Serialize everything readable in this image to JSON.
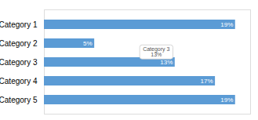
{
  "chart_data": {
    "type": "bar",
    "orientation": "horizontal",
    "categories": [
      "Category 1",
      "Category 2",
      "Category 3",
      "Category 4",
      "Category 5"
    ],
    "values": [
      19,
      5,
      13,
      17,
      19
    ],
    "value_labels": [
      "19%",
      "5%",
      "13%",
      "17%",
      "19%"
    ],
    "data_labels": true,
    "color": "#5b9bd5",
    "xlim": [
      0,
      20.5
    ],
    "xticks": [],
    "tick_labels": "y",
    "grid": false,
    "annotations": [
      {
        "category": "Category 3",
        "text": [
          "Category 3",
          "13%"
        ]
      }
    ]
  }
}
